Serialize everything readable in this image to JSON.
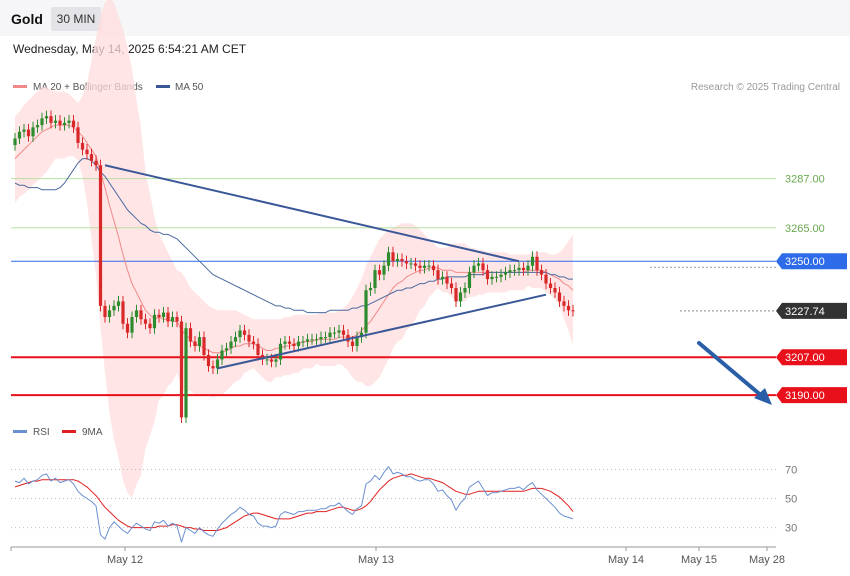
{
  "header": {
    "title": "Gold",
    "timeframe": "30 MIN"
  },
  "datetime": "Wednesday, May 14, 2025 6:54:21 AM CET",
  "copyright": "Research © 2025 Trading Central",
  "colors": {
    "green_level": "#b8e0a0",
    "blue_level": "#2d6be8",
    "red_level": "#e8101a",
    "current": "#333333",
    "bull": "#2e8b2e",
    "bear": "#d8282a",
    "band_fill": "#ffdcdc",
    "ma20": "#f08a8a",
    "ma50": "#4a6aa0",
    "trend": "#3a5898",
    "arrow": "#2a5fa8",
    "rsi": "#6a90d0",
    "rsi_ma": "#e02020"
  },
  "chart_data": [
    {
      "type": "candlestick",
      "legend": [
        {
          "name": "MA 20 + Bollinger Bands",
          "color": "#f08a8a"
        },
        {
          "name": "MA 50",
          "color": "#3a5898"
        }
      ],
      "ylim": [
        3182,
        3320
      ],
      "x_ticks": [
        "May 12",
        "May 13",
        "May 14",
        "May 15",
        "May 28"
      ],
      "levels": [
        {
          "value": 3287.0,
          "label": "3287.00",
          "kind": "resistance-minor"
        },
        {
          "value": 3265.0,
          "label": "3265.00",
          "kind": "resistance-minor"
        },
        {
          "value": 3250.0,
          "label": "3250.00",
          "kind": "pivot"
        },
        {
          "value": 3227.74,
          "label": "3227.74",
          "kind": "current"
        },
        {
          "value": 3207.0,
          "label": "3207.00",
          "kind": "support"
        },
        {
          "value": 3190.0,
          "label": "3190.00",
          "kind": "support"
        }
      ],
      "closes": [
        3305,
        3308,
        3309,
        3306,
        3310,
        3311,
        3314,
        3315,
        3312,
        3313,
        3311,
        3312,
        3313,
        3310,
        3303,
        3300,
        3298,
        3295,
        3293,
        3230,
        3225,
        3228,
        3230,
        3232,
        3222,
        3218,
        3225,
        3228,
        3224,
        3222,
        3220,
        3226,
        3225,
        3227,
        3223,
        3225,
        3223,
        3180,
        3220,
        3214,
        3212,
        3216,
        3208,
        3203,
        3202,
        3206,
        3210,
        3211,
        3214,
        3216,
        3219,
        3217,
        3214,
        3213,
        3208,
        3206,
        3206,
        3205,
        3206,
        3213,
        3214,
        3213,
        3212,
        3214,
        3214,
        3215,
        3215,
        3215,
        3216,
        3216,
        3218,
        3218,
        3219,
        3217,
        3214,
        3212,
        3216,
        3218,
        3237,
        3238,
        3246,
        3244,
        3248,
        3254,
        3250,
        3251,
        3250,
        3249,
        3249,
        3248,
        3247,
        3248,
        3248,
        3246,
        3242,
        3243,
        3240,
        3238,
        3232,
        3236,
        3238,
        3245,
        3248,
        3249,
        3246,
        3242,
        3243,
        3243,
        3244,
        3245,
        3246,
        3246,
        3247,
        3246,
        3248,
        3252,
        3246,
        3244,
        3240,
        3238,
        3236,
        3232,
        3230,
        3228,
        3227.74
      ],
      "ma20": [
        3296,
        3298,
        3300,
        3302,
        3304,
        3306,
        3308,
        3309,
        3310,
        3311,
        3311,
        3311,
        3311,
        3310,
        3308,
        3306,
        3303,
        3300,
        3297,
        3290,
        3283,
        3275,
        3268,
        3261,
        3253,
        3246,
        3240,
        3236,
        3232,
        3228,
        3226,
        3224,
        3225,
        3224,
        3224,
        3223,
        3223,
        3219,
        3217,
        3215,
        3213,
        3212,
        3211,
        3210,
        3209,
        3209,
        3209,
        3210,
        3211,
        3212,
        3212,
        3213,
        3213,
        3213,
        3212,
        3211,
        3210,
        3210,
        3211,
        3211,
        3212,
        3212,
        3213,
        3213,
        3214,
        3214,
        3214,
        3215,
        3215,
        3215,
        3215,
        3215,
        3216,
        3216,
        3216,
        3216,
        3217,
        3219,
        3221,
        3223,
        3226,
        3229,
        3232,
        3235,
        3238,
        3240,
        3241,
        3243,
        3244,
        3245,
        3246,
        3246,
        3247,
        3247,
        3247,
        3246,
        3246,
        3246,
        3245,
        3245,
        3245,
        3245,
        3245,
        3245,
        3245,
        3245,
        3245,
        3245,
        3245,
        3245,
        3245,
        3245,
        3245,
        3245,
        3246,
        3246,
        3246,
        3246,
        3245,
        3244,
        3243,
        3242,
        3240,
        3239,
        3237
      ],
      "bb_upper": [
        3315,
        3317,
        3320,
        3322,
        3324,
        3326,
        3328,
        3328,
        3327,
        3326,
        3326,
        3326,
        3325,
        3323,
        3321,
        3324,
        3330,
        3340,
        3350,
        3360,
        3366,
        3368,
        3366,
        3360,
        3354,
        3346,
        3336,
        3322,
        3310,
        3290,
        3280,
        3270,
        3262,
        3258,
        3254,
        3250,
        3246,
        3245,
        3242,
        3238,
        3236,
        3234,
        3232,
        3230,
        3229,
        3228,
        3228,
        3228,
        3228,
        3228,
        3227,
        3226,
        3225,
        3224,
        3224,
        3224,
        3224,
        3224,
        3224,
        3224,
        3225,
        3225,
        3226,
        3226,
        3226,
        3226,
        3226,
        3226,
        3227,
        3227,
        3227,
        3227,
        3228,
        3229,
        3231,
        3234,
        3238,
        3242,
        3248,
        3252,
        3256,
        3260,
        3262,
        3264,
        3265,
        3266,
        3267,
        3267,
        3267,
        3266,
        3264,
        3262,
        3260,
        3258,
        3256,
        3256,
        3256,
        3258,
        3258,
        3258,
        3258,
        3256,
        3256,
        3255,
        3255,
        3254,
        3254,
        3254,
        3254,
        3254,
        3253,
        3253,
        3253,
        3253,
        3253,
        3254,
        3254,
        3254,
        3254,
        3253,
        3253,
        3254,
        3256,
        3259,
        3262
      ],
      "bb_lower": [
        3276,
        3279,
        3280,
        3282,
        3284,
        3286,
        3288,
        3290,
        3293,
        3296,
        3296,
        3296,
        3297,
        3297,
        3295,
        3288,
        3276,
        3260,
        3244,
        3220,
        3200,
        3182,
        3170,
        3162,
        3152,
        3146,
        3144,
        3150,
        3154,
        3166,
        3172,
        3178,
        3188,
        3190,
        3194,
        3196,
        3200,
        3193,
        3192,
        3192,
        3190,
        3190,
        3190,
        3190,
        3189,
        3190,
        3190,
        3192,
        3194,
        3196,
        3197,
        3200,
        3201,
        3202,
        3200,
        3198,
        3196,
        3196,
        3198,
        3198,
        3199,
        3199,
        3200,
        3200,
        3202,
        3202,
        3202,
        3204,
        3203,
        3203,
        3203,
        3203,
        3204,
        3203,
        3201,
        3198,
        3196,
        3196,
        3194,
        3194,
        3196,
        3198,
        3202,
        3206,
        3211,
        3214,
        3215,
        3219,
        3221,
        3224,
        3228,
        3230,
        3234,
        3236,
        3238,
        3236,
        3236,
        3234,
        3232,
        3232,
        3232,
        3234,
        3234,
        3235,
        3235,
        3236,
        3236,
        3236,
        3236,
        3236,
        3237,
        3237,
        3237,
        3237,
        3239,
        3238,
        3238,
        3238,
        3236,
        3235,
        3233,
        3230,
        3224,
        3219,
        3212
      ],
      "ma50": [
        3285,
        3284,
        3284,
        3283,
        3283,
        3283,
        3282,
        3282,
        3282,
        3282,
        3283,
        3285,
        3288,
        3291,
        3294,
        3296,
        3296,
        3295,
        3293,
        3290,
        3288,
        3285,
        3282,
        3279,
        3276,
        3273,
        3271,
        3269,
        3267,
        3266,
        3264,
        3263,
        3263,
        3262,
        3262,
        3261,
        3260,
        3258,
        3256,
        3254,
        3252,
        3250,
        3248,
        3246,
        3244,
        3243,
        3242,
        3241,
        3240,
        3239,
        3238,
        3237,
        3236,
        3235,
        3234,
        3233,
        3232,
        3231,
        3230,
        3230,
        3229,
        3229,
        3228,
        3228,
        3228,
        3227,
        3227,
        3227,
        3227,
        3227,
        3228,
        3228,
        3228,
        3228,
        3228,
        3229,
        3229,
        3230,
        3230,
        3231,
        3232,
        3233,
        3234,
        3235,
        3236,
        3237,
        3237,
        3238,
        3238,
        3239,
        3240,
        3240,
        3241,
        3241,
        3242,
        3242,
        3243,
        3243,
        3243,
        3243,
        3243,
        3244,
        3244,
        3244,
        3244,
        3245,
        3245,
        3245,
        3245,
        3245,
        3245,
        3245,
        3245,
        3245,
        3245,
        3245,
        3245,
        3245,
        3245,
        3244,
        3244,
        3243,
        3243,
        3242,
        3242
      ],
      "trendlines": [
        {
          "from": [
            20,
            3293
          ],
          "to": [
            112,
            3250
          ]
        },
        {
          "from": [
            45,
            3202
          ],
          "to": [
            118,
            3235
          ]
        }
      ]
    },
    {
      "type": "line",
      "legend": [
        {
          "name": "RSI",
          "color": "#6a90d0"
        },
        {
          "name": "9MA",
          "color": "#e02020"
        }
      ],
      "ylim": [
        18,
        80
      ],
      "y_ticks": [
        70,
        50,
        30
      ],
      "rsi": [
        62,
        61,
        64,
        60,
        62,
        63,
        66,
        67,
        62,
        64,
        61,
        62,
        63,
        60,
        55,
        52,
        50,
        48,
        45,
        25,
        22,
        30,
        34,
        31,
        28,
        26,
        30,
        33,
        31,
        29,
        28,
        34,
        33,
        35,
        31,
        33,
        31,
        20,
        30,
        28,
        26,
        30,
        27,
        25,
        24,
        29,
        33,
        36,
        39,
        41,
        44,
        42,
        39,
        38,
        33,
        31,
        31,
        30,
        31,
        39,
        41,
        40,
        39,
        41,
        41,
        42,
        42,
        42,
        43,
        43,
        45,
        45,
        47,
        44,
        41,
        39,
        43,
        45,
        60,
        62,
        66,
        63,
        68,
        72,
        67,
        68,
        67,
        65,
        65,
        63,
        62,
        63,
        63,
        60,
        55,
        56,
        52,
        49,
        42,
        47,
        50,
        58,
        60,
        62,
        57,
        52,
        54,
        54,
        55,
        56,
        57,
        57,
        58,
        56,
        59,
        61,
        56,
        53,
        50,
        47,
        44,
        40,
        38,
        37,
        36
      ],
      "rsi_ma": [
        58,
        59,
        60,
        61,
        62,
        62,
        63,
        63,
        63,
        63,
        63,
        63,
        63,
        63,
        62,
        60,
        58,
        55,
        52,
        48,
        44,
        41,
        38,
        35,
        33,
        31,
        30,
        30,
        30,
        30,
        30,
        30,
        31,
        31,
        31,
        32,
        32,
        31,
        30,
        30,
        29,
        29,
        28,
        28,
        28,
        28,
        29,
        30,
        32,
        34,
        36,
        38,
        39,
        40,
        40,
        39,
        38,
        37,
        36,
        36,
        36,
        36,
        37,
        38,
        39,
        40,
        40,
        41,
        41,
        41,
        42,
        43,
        44,
        44,
        43,
        42,
        42,
        43,
        45,
        48,
        52,
        56,
        59,
        62,
        64,
        65,
        66,
        66,
        67,
        66,
        65,
        64,
        64,
        63,
        62,
        61,
        59,
        57,
        55,
        54,
        53,
        53,
        54,
        55,
        55,
        55,
        55,
        55,
        55,
        55,
        55,
        55,
        55,
        55,
        56,
        57,
        57,
        57,
        56,
        55,
        53,
        51,
        48,
        45,
        41
      ]
    }
  ]
}
